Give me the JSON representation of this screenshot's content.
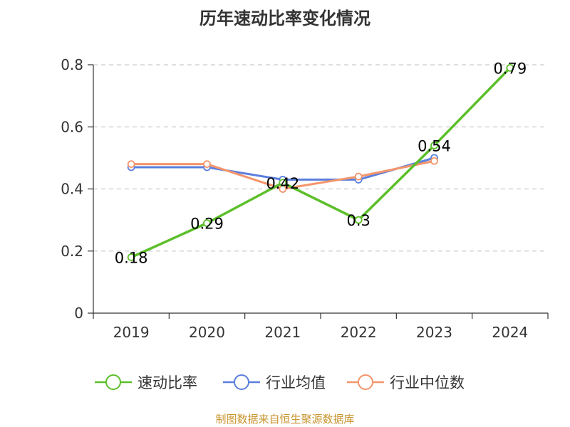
{
  "chart_data": {
    "type": "line",
    "title": "历年速动比率变化情况",
    "categories": [
      "2019",
      "2020",
      "2021",
      "2022",
      "2023",
      "2024"
    ],
    "ylim": [
      0,
      0.8
    ],
    "yticks": [
      0,
      0.2,
      0.4,
      0.6,
      0.8
    ],
    "ytick_labels": [
      "0",
      "0.2",
      "0.4",
      "0.6",
      "0.8"
    ],
    "grid": true,
    "legend_position": "bottom",
    "series": [
      {
        "name": "速动比率",
        "color": "#5cbf2a",
        "values": [
          0.18,
          0.29,
          0.42,
          0.3,
          0.54,
          0.79
        ],
        "labels": [
          "0.18",
          "0.29",
          "0.42",
          "0.3",
          "0.54",
          "0.79"
        ]
      },
      {
        "name": "行业均值",
        "color": "#5b7fde",
        "values": [
          0.47,
          0.47,
          0.43,
          0.43,
          0.5,
          null
        ]
      },
      {
        "name": "行业中位数",
        "color": "#f4956b",
        "values": [
          0.48,
          0.48,
          0.4,
          0.44,
          0.49,
          null
        ]
      }
    ]
  },
  "source_note": "制图数据来自恒生聚源数据库"
}
